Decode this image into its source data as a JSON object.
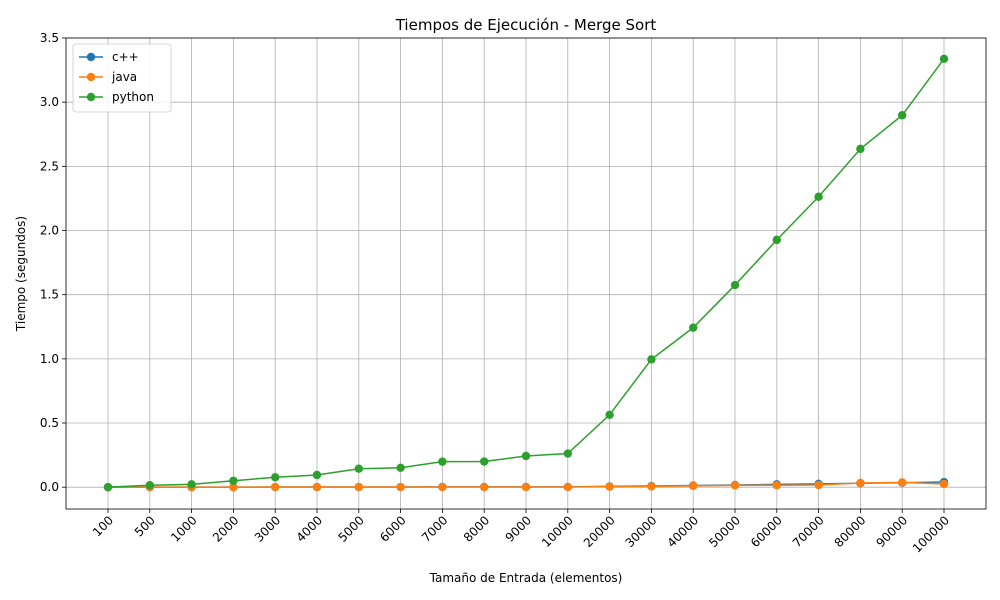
{
  "chart_data": {
    "type": "line",
    "title": "Tiempos de Ejecución - Merge Sort",
    "xlabel": "Tamaño de Entrada (elementos)",
    "ylabel": "Tiempo (segundos)",
    "categories": [
      "100",
      "500",
      "1000",
      "2000",
      "3000",
      "4000",
      "5000",
      "6000",
      "7000",
      "8000",
      "9000",
      "10000",
      "20000",
      "30000",
      "40000",
      "50000",
      "60000",
      "70000",
      "80000",
      "90000",
      "100000"
    ],
    "ylim": [
      -0.17,
      3.5
    ],
    "yticks": [
      0.0,
      0.5,
      1.0,
      1.5,
      2.0,
      2.5,
      3.0,
      3.5
    ],
    "ytick_labels": [
      "0.0",
      "0.5",
      "1.0",
      "1.5",
      "2.0",
      "2.5",
      "3.0",
      "3.5"
    ],
    "grid": true,
    "legend_position": "upper-left",
    "series": [
      {
        "name": "c++",
        "color": "#1f77b4",
        "marker": "circle",
        "values": [
          0.0,
          0.0,
          0.0,
          0.0,
          0.001,
          0.001,
          0.001,
          0.001,
          0.002,
          0.002,
          0.002,
          0.002,
          0.006,
          0.009,
          0.013,
          0.017,
          0.022,
          0.026,
          0.031,
          0.035,
          0.04
        ]
      },
      {
        "name": "java",
        "color": "#ff7f0e",
        "marker": "circle",
        "values": [
          0.0,
          0.0,
          0.0,
          0.0,
          0.001,
          0.001,
          0.001,
          0.001,
          0.001,
          0.001,
          0.001,
          0.001,
          0.004,
          0.006,
          0.01,
          0.014,
          0.015,
          0.017,
          0.033,
          0.037,
          0.025
        ]
      },
      {
        "name": "python",
        "color": "#2ca02c",
        "marker": "circle",
        "values": [
          0.0,
          0.015,
          0.022,
          0.05,
          0.077,
          0.095,
          0.144,
          0.151,
          0.199,
          0.2,
          0.243,
          0.262,
          0.564,
          0.996,
          1.243,
          1.575,
          1.927,
          2.263,
          2.636,
          2.898,
          3.338
        ]
      }
    ]
  }
}
